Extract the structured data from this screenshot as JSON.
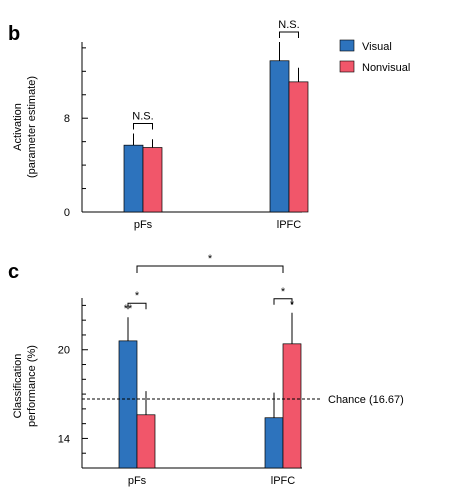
{
  "colors": {
    "visual": "#2d73bd",
    "nonvisual": "#f1566a"
  },
  "legend": [
    {
      "name": "Visual",
      "color": "#2d73bd"
    },
    {
      "name": "Nonvisual",
      "color": "#f1566a"
    }
  ],
  "chart_data": [
    {
      "panel": "b",
      "type": "bar",
      "categories": [
        "pFs",
        "lPFC"
      ],
      "series": [
        {
          "name": "Visual",
          "values": [
            5.7,
            12.9
          ],
          "errors": [
            1.0,
            1.6
          ]
        },
        {
          "name": "Nonvisual",
          "values": [
            5.5,
            11.1
          ],
          "errors": [
            0.7,
            1.2
          ]
        }
      ],
      "ylabel": [
        "Activation",
        "(parameter estimate)"
      ],
      "ylim": [
        0,
        14.5
      ],
      "yticks": [
        0,
        8
      ],
      "significance": [
        {
          "between": [
            "pFs: Visual",
            "pFs: Nonvisual"
          ],
          "label": "N.S."
        },
        {
          "between": [
            "lPFC: Visual",
            "lPFC: Nonvisual"
          ],
          "label": "N.S."
        }
      ],
      "grid": false
    },
    {
      "panel": "c",
      "type": "bar",
      "categories": [
        "pFs",
        "lPFC"
      ],
      "series": [
        {
          "name": "Visual",
          "values": [
            20.6,
            15.4
          ],
          "errors": [
            1.6,
            1.7
          ]
        },
        {
          "name": "Nonvisual",
          "values": [
            15.6,
            20.4
          ],
          "errors": [
            1.6,
            2.1
          ]
        }
      ],
      "ylabel": [
        "Classification",
        "performance (%)"
      ],
      "ylim": [
        12,
        23.5
      ],
      "yticks": [
        14,
        20
      ],
      "reference_line": {
        "value": 16.67,
        "label": "Chance (16.67)"
      },
      "bar_annotations": [
        {
          "category": "pFs",
          "series": "Visual",
          "label": "**"
        },
        {
          "category": "lPFC",
          "series": "Nonvisual",
          "label": "*"
        }
      ],
      "significance": [
        {
          "between": [
            "pFs: Visual",
            "pFs: Nonvisual"
          ],
          "label": "*"
        },
        {
          "between": [
            "lPFC: Visual",
            "lPFC: Nonvisual"
          ],
          "label": "*"
        },
        {
          "between": [
            "pFs",
            "lPFC"
          ],
          "label": "*"
        }
      ],
      "grid": false
    }
  ]
}
